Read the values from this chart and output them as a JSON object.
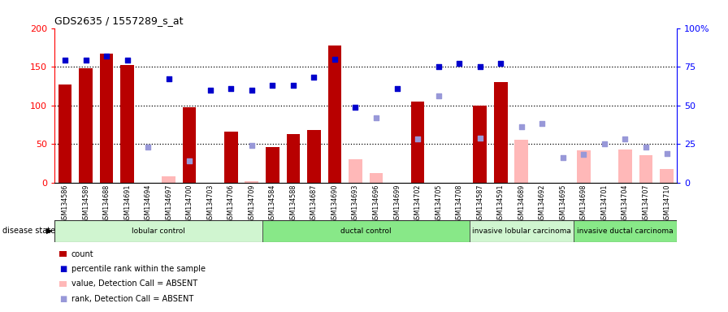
{
  "title": "GDS2635 / 1557289_s_at",
  "samples": [
    "GSM134586",
    "GSM134589",
    "GSM134688",
    "GSM134691",
    "GSM134694",
    "GSM134697",
    "GSM134700",
    "GSM134703",
    "GSM134706",
    "GSM134709",
    "GSM134584",
    "GSM134588",
    "GSM134687",
    "GSM134690",
    "GSM134693",
    "GSM134696",
    "GSM134699",
    "GSM134702",
    "GSM134705",
    "GSM134708",
    "GSM134587",
    "GSM134591",
    "GSM134689",
    "GSM134692",
    "GSM134695",
    "GSM134698",
    "GSM134701",
    "GSM134704",
    "GSM134707",
    "GSM134710"
  ],
  "count_present": [
    127,
    148,
    167,
    152,
    null,
    null,
    98,
    null,
    66,
    null,
    46,
    63,
    68,
    177,
    null,
    null,
    null,
    105,
    null,
    null,
    100,
    130,
    null,
    null,
    null,
    null,
    null,
    null,
    null,
    null
  ],
  "count_absent": [
    null,
    null,
    null,
    null,
    null,
    8,
    null,
    null,
    null,
    2,
    null,
    null,
    null,
    null,
    30,
    12,
    null,
    null,
    null,
    null,
    null,
    null,
    55,
    null,
    null,
    42,
    null,
    43,
    35,
    18
  ],
  "rank_present": [
    79,
    79,
    82,
    79,
    null,
    67,
    null,
    60,
    61,
    60,
    63,
    63,
    68,
    80,
    49,
    null,
    61,
    null,
    75,
    77,
    75,
    77,
    null,
    null,
    null,
    null,
    null,
    null,
    null,
    null
  ],
  "rank_absent": [
    null,
    null,
    null,
    null,
    23,
    null,
    14,
    null,
    null,
    24,
    null,
    null,
    null,
    null,
    null,
    42,
    null,
    28,
    56,
    null,
    29,
    null,
    36,
    38,
    16,
    18,
    25,
    28,
    23,
    19
  ],
  "group_ranges": [
    [
      0,
      10
    ],
    [
      10,
      20
    ],
    [
      20,
      25
    ],
    [
      25,
      30
    ]
  ],
  "group_labels": [
    "lobular control",
    "ductal control",
    "invasive lobular carcinoma",
    "invasive ductal carcinoma"
  ],
  "group_colors": [
    "#d0f5d0",
    "#88e888",
    "#d0f5d0",
    "#88e888"
  ],
  "bar_color_red": "#b80000",
  "bar_color_pink": "#ffb8b8",
  "dot_color_blue": "#0000cc",
  "dot_color_lblue": "#9898d8",
  "ylim_left": [
    0,
    200
  ],
  "ylim_right": [
    0,
    100
  ],
  "yticks_left": [
    0,
    50,
    100,
    150,
    200
  ],
  "yticks_right": [
    0,
    25,
    50,
    75,
    100
  ],
  "ytick_labels_right": [
    "0",
    "25",
    "50",
    "75",
    "100%"
  ],
  "legend_items": [
    {
      "label": "count",
      "color": "#b80000",
      "shape": "rect"
    },
    {
      "label": "percentile rank within the sample",
      "color": "#0000cc",
      "shape": "square"
    },
    {
      "label": "value, Detection Call = ABSENT",
      "color": "#ffb8b8",
      "shape": "rect"
    },
    {
      "label": "rank, Detection Call = ABSENT",
      "color": "#9898d8",
      "shape": "square"
    }
  ]
}
